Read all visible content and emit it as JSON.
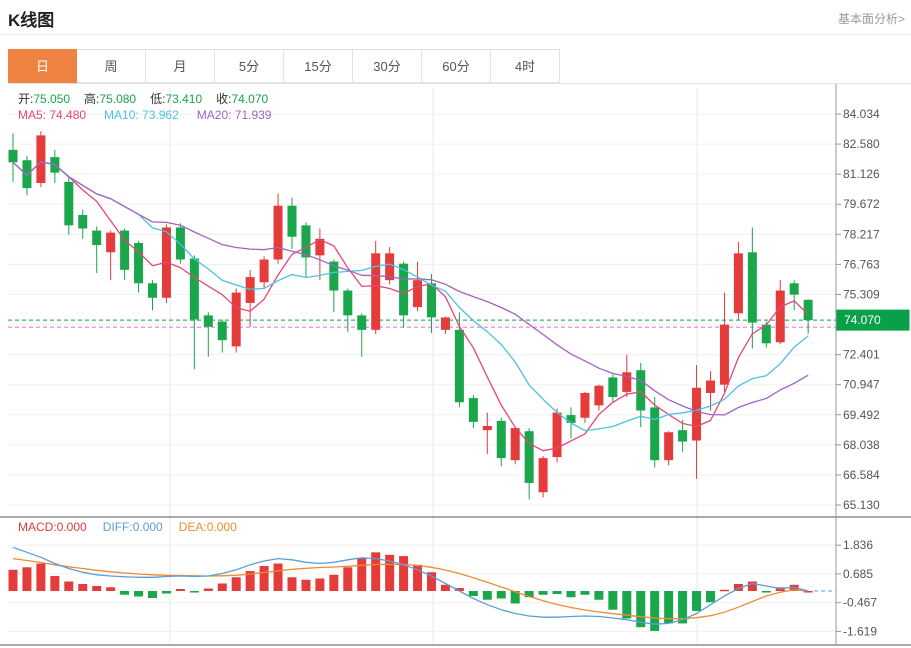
{
  "header": {
    "title": "K线图",
    "link_label": "基本面分析>"
  },
  "tabs": {
    "items": [
      "日",
      "周",
      "月",
      "5分",
      "15分",
      "30分",
      "60分",
      "4时"
    ],
    "active_index": 0,
    "active_label": "日"
  },
  "info": {
    "open_label": "开:",
    "open_value": "75.050",
    "high_label": "高:",
    "high_value": "75.080",
    "low_label": "低:",
    "low_value": "73.410",
    "close_label": "收:",
    "close_value": "74.070",
    "ma5_text": "MA5: 74.480",
    "ma10_text": "MA10: 73.962",
    "ma20_text": "MA20: 71.939"
  },
  "macd_info": {
    "macd_text": "MACD:0.000",
    "diff_text": "DIFF:0.000",
    "dea_text": "DEA:0.000"
  },
  "colors": {
    "up": "#e43b3b",
    "down": "#1aa64b",
    "ma5": "#e8457a",
    "ma10": "#4ac3e2",
    "ma20": "#a263bf",
    "diff": "#5b9fd8",
    "dea": "#ef8b31",
    "tab_active": "#ef8342",
    "badge": "#0aa04a",
    "dashed_ref": "#e36ad8",
    "grid": "#f0f0f0",
    "axis": "#999999",
    "divider": "#555555"
  },
  "chart_data": {
    "type": "candlestick+macd",
    "title": "K线图",
    "legend": [
      "MA5",
      "MA10",
      "MA20",
      "MACD",
      "DIFF",
      "DEA"
    ],
    "price_axis": {
      "tick_top_value": 84.034,
      "tick_step": 1.454,
      "tick_labels": [
        "84.034",
        "82.580",
        "81.126",
        "79.672",
        "78.217",
        "76.763",
        "75.309",
        "",
        "72.401",
        "70.947",
        "69.492",
        "68.038",
        "66.584",
        "65.130"
      ],
      "current_price": "74.070",
      "current_price_value": 74.07,
      "reference_dashed_price": 73.73,
      "range": [
        64.6,
        84.5
      ]
    },
    "macd_axis": {
      "ticks": [
        {
          "label": "1.836",
          "value": 1.836
        },
        {
          "label": "0.685",
          "value": 0.685
        },
        {
          "label": "-0.467",
          "value": -0.467
        },
        {
          "label": "-1.619",
          "value": -1.619
        }
      ],
      "range": [
        -2.2,
        2.3
      ]
    },
    "ma_windows": [
      5,
      10,
      20
    ],
    "candles": [
      [
        82.3,
        83.1,
        80.75,
        81.7
      ],
      [
        81.8,
        82.0,
        80.1,
        80.45
      ],
      [
        80.7,
        83.2,
        80.5,
        83.0
      ],
      [
        81.95,
        82.3,
        80.7,
        81.2
      ],
      [
        80.75,
        81.0,
        78.2,
        78.65
      ],
      [
        79.15,
        79.4,
        78.0,
        78.5
      ],
      [
        78.4,
        78.6,
        76.35,
        77.7
      ],
      [
        77.35,
        78.4,
        76.0,
        78.3
      ],
      [
        78.4,
        78.5,
        76.0,
        76.5
      ],
      [
        77.8,
        77.9,
        75.4,
        75.85
      ],
      [
        75.85,
        76.0,
        74.55,
        75.15
      ],
      [
        75.15,
        78.7,
        74.9,
        78.55
      ],
      [
        78.55,
        78.75,
        76.8,
        77.0
      ],
      [
        77.05,
        77.2,
        71.7,
        74.1
      ],
      [
        74.3,
        74.45,
        72.3,
        73.75
      ],
      [
        74.0,
        74.1,
        72.5,
        73.1
      ],
      [
        72.8,
        75.6,
        72.5,
        75.4
      ],
      [
        74.9,
        76.5,
        73.75,
        76.15
      ],
      [
        75.9,
        77.15,
        75.6,
        77.0
      ],
      [
        77.0,
        80.2,
        76.8,
        79.6
      ],
      [
        79.6,
        80.0,
        77.5,
        78.1
      ],
      [
        78.65,
        78.8,
        76.1,
        77.1
      ],
      [
        77.2,
        78.5,
        76.0,
        78.0
      ],
      [
        76.9,
        77.0,
        74.45,
        75.5
      ],
      [
        75.5,
        75.6,
        73.5,
        74.3
      ],
      [
        74.3,
        74.4,
        72.3,
        73.6
      ],
      [
        73.6,
        77.9,
        73.4,
        77.3
      ],
      [
        76.0,
        77.6,
        75.8,
        77.3
      ],
      [
        76.8,
        76.9,
        73.7,
        74.3
      ],
      [
        74.7,
        76.9,
        74.5,
        76.0
      ],
      [
        75.85,
        76.3,
        73.45,
        74.2
      ],
      [
        73.6,
        74.25,
        73.4,
        74.2
      ],
      [
        73.6,
        74.45,
        69.85,
        70.1
      ],
      [
        70.3,
        70.45,
        68.85,
        69.15
      ],
      [
        68.75,
        69.6,
        67.6,
        68.95
      ],
      [
        69.2,
        69.35,
        67.0,
        67.4
      ],
      [
        67.3,
        68.9,
        67.1,
        68.85
      ],
      [
        68.7,
        68.85,
        65.4,
        66.2
      ],
      [
        65.75,
        67.5,
        65.5,
        67.4
      ],
      [
        67.45,
        69.8,
        67.2,
        69.6
      ],
      [
        69.48,
        69.85,
        68.35,
        69.1
      ],
      [
        69.35,
        70.6,
        69.1,
        70.55
      ],
      [
        69.95,
        70.95,
        69.7,
        70.9
      ],
      [
        71.3,
        71.45,
        70.1,
        70.35
      ],
      [
        70.6,
        72.4,
        70.35,
        71.55
      ],
      [
        71.65,
        72.0,
        68.9,
        69.7
      ],
      [
        69.85,
        70.35,
        66.95,
        67.3
      ],
      [
        67.3,
        68.7,
        67.05,
        68.65
      ],
      [
        68.75,
        69.25,
        67.7,
        68.2
      ],
      [
        68.25,
        71.9,
        66.4,
        70.8
      ],
      [
        70.55,
        71.6,
        69.7,
        71.15
      ],
      [
        70.95,
        75.4,
        70.6,
        73.85
      ],
      [
        74.4,
        77.85,
        74.1,
        77.3
      ],
      [
        77.35,
        78.55,
        72.7,
        73.95
      ],
      [
        73.85,
        74.0,
        72.75,
        72.95
      ],
      [
        73.0,
        76.0,
        72.9,
        75.5
      ],
      [
        75.85,
        76.0,
        74.55,
        75.3
      ],
      [
        75.05,
        75.08,
        73.41,
        74.07
      ]
    ],
    "macd_hist": [
      0.85,
      0.95,
      1.1,
      0.6,
      0.38,
      0.28,
      0.2,
      0.15,
      -0.15,
      -0.22,
      -0.28,
      -0.1,
      0.08,
      -0.05,
      0.1,
      0.3,
      0.55,
      0.8,
      1.0,
      1.1,
      0.55,
      0.45,
      0.5,
      0.65,
      0.95,
      1.3,
      1.55,
      1.45,
      1.4,
      1.05,
      0.75,
      0.25,
      0.12,
      -0.2,
      -0.35,
      -0.3,
      -0.5,
      -0.25,
      -0.15,
      -0.12,
      -0.25,
      -0.15,
      -0.35,
      -0.75,
      -1.1,
      -1.45,
      -1.6,
      -1.3,
      -1.3,
      -0.8,
      -0.45,
      0.05,
      0.28,
      0.38,
      -0.05,
      0.15,
      0.25,
      0.0
    ],
    "diff": [
      1.75,
      1.55,
      1.35,
      1.1,
      0.9,
      0.75,
      0.65,
      0.6,
      0.57,
      0.55,
      0.55,
      0.58,
      0.6,
      0.58,
      0.6,
      0.7,
      0.85,
      1.05,
      1.2,
      1.3,
      1.25,
      1.15,
      1.1,
      1.15,
      1.25,
      1.33,
      1.3,
      1.2,
      1.05,
      0.85,
      0.6,
      0.3,
      0.0,
      -0.3,
      -0.55,
      -0.75,
      -0.9,
      -1.0,
      -1.05,
      -1.05,
      -1.02,
      -1.0,
      -1.02,
      -1.08,
      -1.15,
      -1.25,
      -1.33,
      -1.3,
      -1.15,
      -0.9,
      -0.55,
      -0.2,
      0.1,
      0.3,
      0.2,
      0.1,
      0.15,
      0.0
    ],
    "dea": [
      1.3,
      1.22,
      1.14,
      1.05,
      0.97,
      0.9,
      0.83,
      0.77,
      0.72,
      0.68,
      0.65,
      0.63,
      0.62,
      0.61,
      0.6,
      0.61,
      0.63,
      0.68,
      0.74,
      0.81,
      0.87,
      0.91,
      0.94,
      0.96,
      0.99,
      1.03,
      1.06,
      1.07,
      1.06,
      1.02,
      0.95,
      0.84,
      0.7,
      0.53,
      0.35,
      0.16,
      -0.03,
      -0.22,
      -0.39,
      -0.54,
      -0.66,
      -0.76,
      -0.84,
      -0.91,
      -0.97,
      -1.03,
      -1.08,
      -1.11,
      -1.11,
      -1.07,
      -0.99,
      -0.85,
      -0.65,
      -0.42,
      -0.2,
      -0.05,
      0.05,
      0.0
    ]
  }
}
